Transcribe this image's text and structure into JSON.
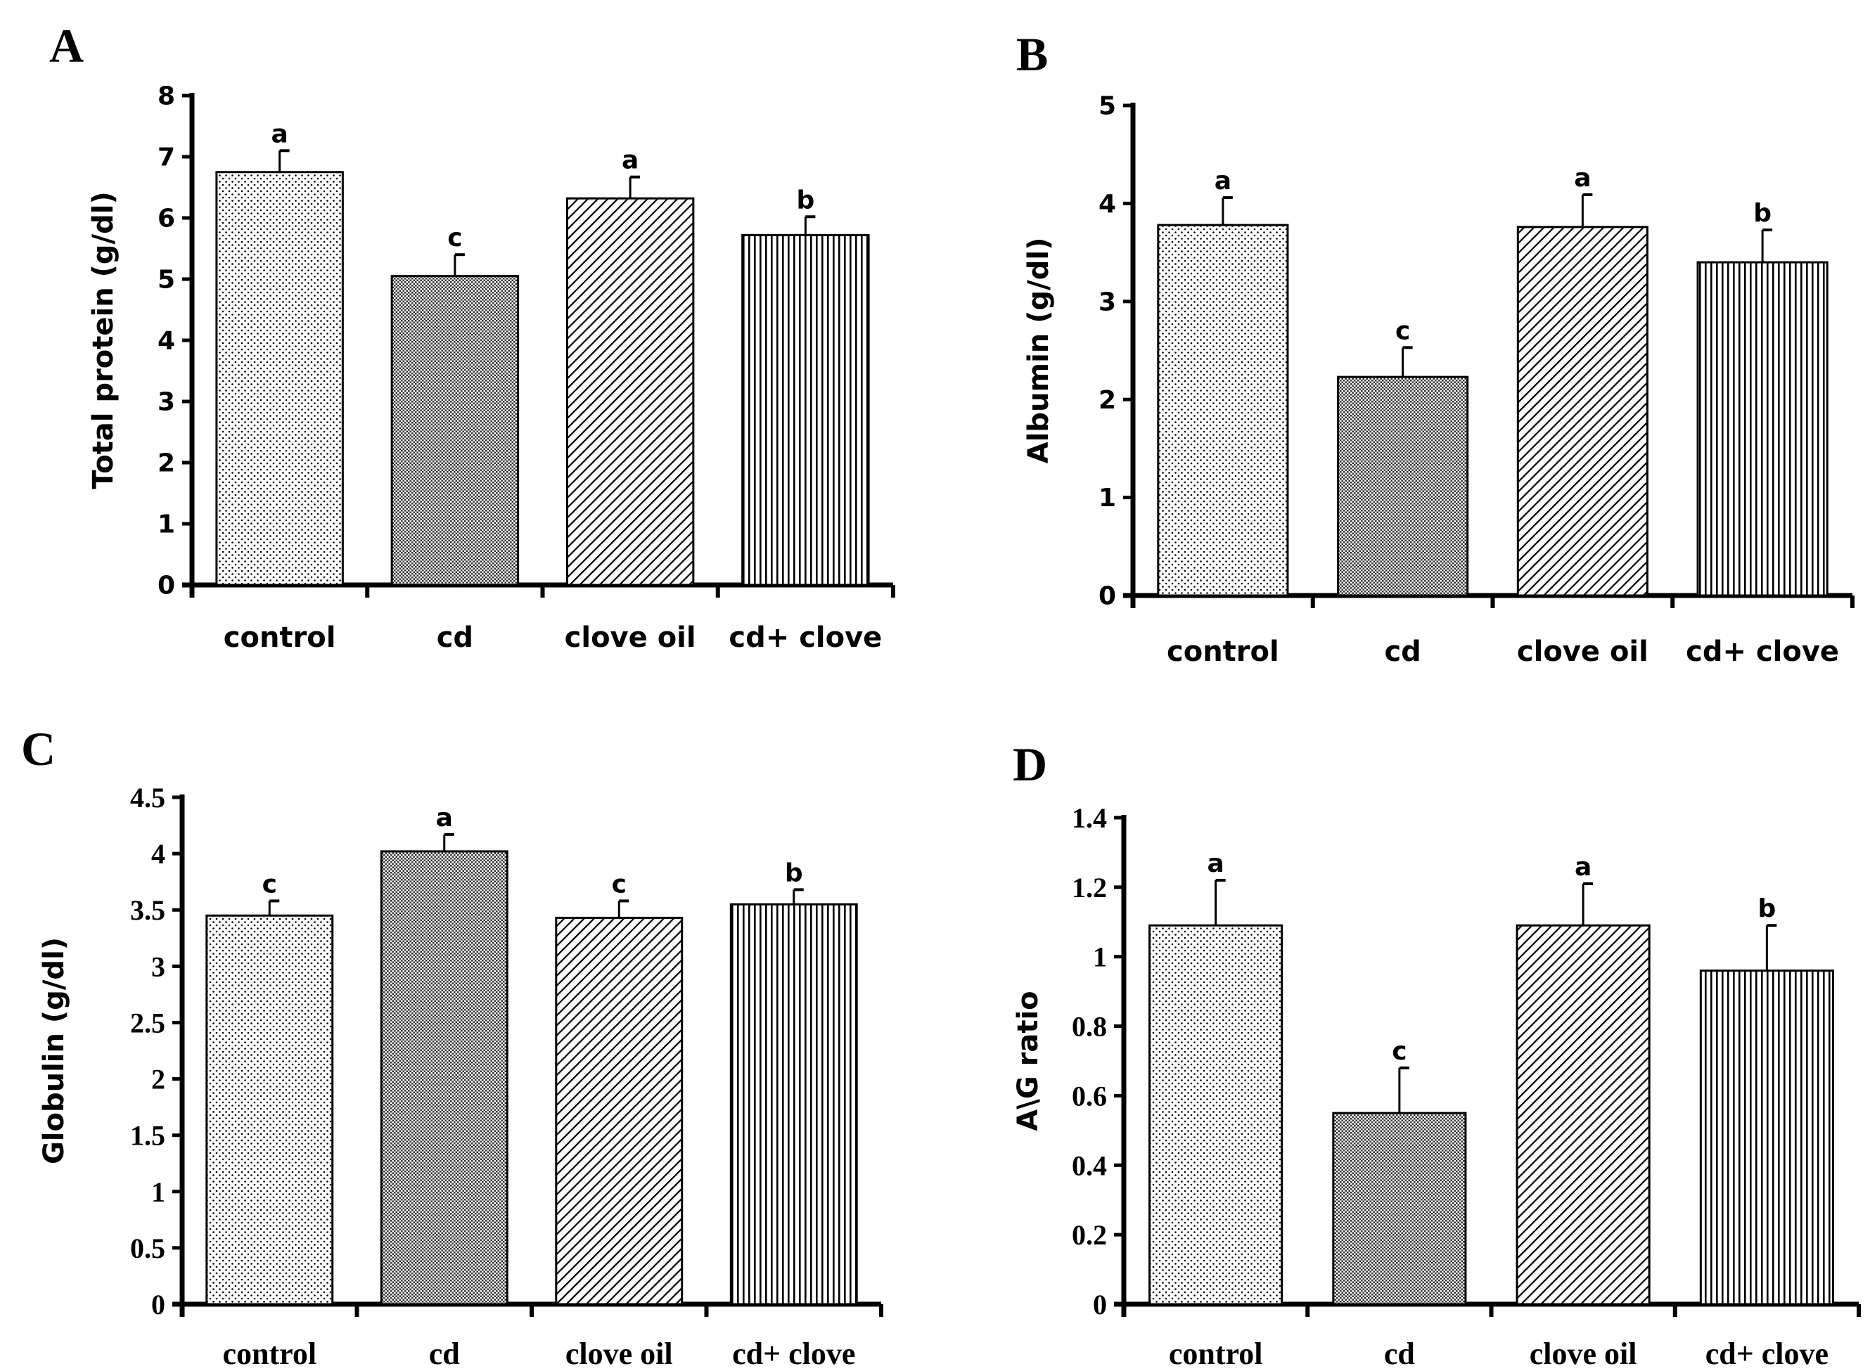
{
  "chart_data": [
    {
      "panel": "A",
      "type": "bar",
      "ylabel": "Total protein (g/dl)",
      "xlabel": "",
      "categories": [
        "control",
        "cd",
        "clove oil",
        "cd+ clove"
      ],
      "values": [
        6.75,
        5.05,
        6.32,
        5.72
      ],
      "errors": [
        0.35,
        0.35,
        0.35,
        0.3
      ],
      "letters": [
        "a",
        "c",
        "a",
        "b"
      ],
      "ylim": [
        0,
        8
      ],
      "yticks": [
        "0",
        "1",
        "2",
        "3",
        "4",
        "5",
        "6",
        "7",
        "8"
      ],
      "grid": false
    },
    {
      "panel": "B",
      "type": "bar",
      "ylabel": "Albumin (g/dl)",
      "xlabel": "",
      "categories": [
        "control",
        "cd",
        "clove oil",
        "cd+ clove"
      ],
      "values": [
        3.78,
        2.23,
        3.76,
        3.4
      ],
      "errors": [
        0.28,
        0.3,
        0.33,
        0.33
      ],
      "letters": [
        "a",
        "c",
        "a",
        "b"
      ],
      "ylim": [
        0,
        5
      ],
      "yticks": [
        "0",
        "1",
        "2",
        "3",
        "4",
        "5"
      ],
      "grid": false
    },
    {
      "panel": "C",
      "type": "bar",
      "ylabel": "Globulin (g/dl)",
      "xlabel": "",
      "categories": [
        "control",
        "cd",
        "clove oil",
        "cd+ clove"
      ],
      "values": [
        3.45,
        4.02,
        3.43,
        3.55
      ],
      "errors": [
        0.13,
        0.15,
        0.15,
        0.13
      ],
      "letters": [
        "c",
        "a",
        "c",
        "b"
      ],
      "ylim": [
        0,
        4.5
      ],
      "yticks": [
        "0",
        "0.5",
        "1",
        "1.5",
        "2",
        "2.5",
        "3",
        "3.5",
        "4",
        "4.5"
      ],
      "grid": false
    },
    {
      "panel": "D",
      "type": "bar",
      "ylabel": "A\\G ratio",
      "xlabel": "",
      "categories": [
        "control",
        "cd",
        "clove oil",
        "cd+ clove"
      ],
      "values": [
        1.09,
        0.55,
        1.09,
        0.96
      ],
      "errors": [
        0.13,
        0.13,
        0.12,
        0.13
      ],
      "letters": [
        "a",
        "c",
        "a",
        "b"
      ],
      "ylim": [
        0,
        1.4
      ],
      "yticks": [
        "0",
        "0.2",
        "0.4",
        "0.6",
        "0.8",
        "1",
        "1.2",
        "1.4"
      ],
      "grid": false
    }
  ],
  "colors": {
    "axis": "#000000",
    "background": "#ffffff",
    "bar_outline": "#000000"
  }
}
